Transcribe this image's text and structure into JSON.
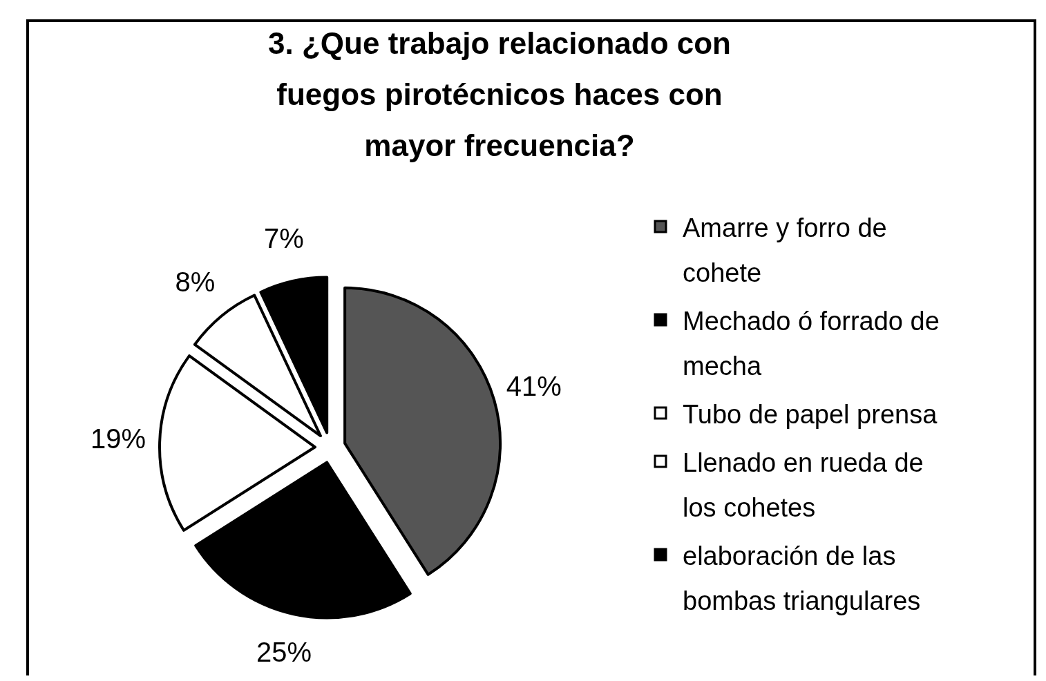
{
  "chart_data": {
    "type": "pie",
    "title": "3. ¿Que trabajo relacionado con fuegos pirotécnicos haces con mayor frecuencia?",
    "categories": [
      "Amarre y forro de cohete",
      "Mechado ó forrado de mecha",
      "Tubo de papel prensa",
      "Llenado en rueda de los cohetes",
      "elaboración de las bombas triangulares"
    ],
    "values": [
      41,
      25,
      19,
      8,
      7
    ],
    "value_labels": [
      "41%",
      "25%",
      "19%",
      "8%",
      "7%"
    ],
    "colors": [
      "#555555",
      "#000000",
      "#ffffff",
      "#ffffff",
      "#000000"
    ],
    "legend": "right"
  }
}
